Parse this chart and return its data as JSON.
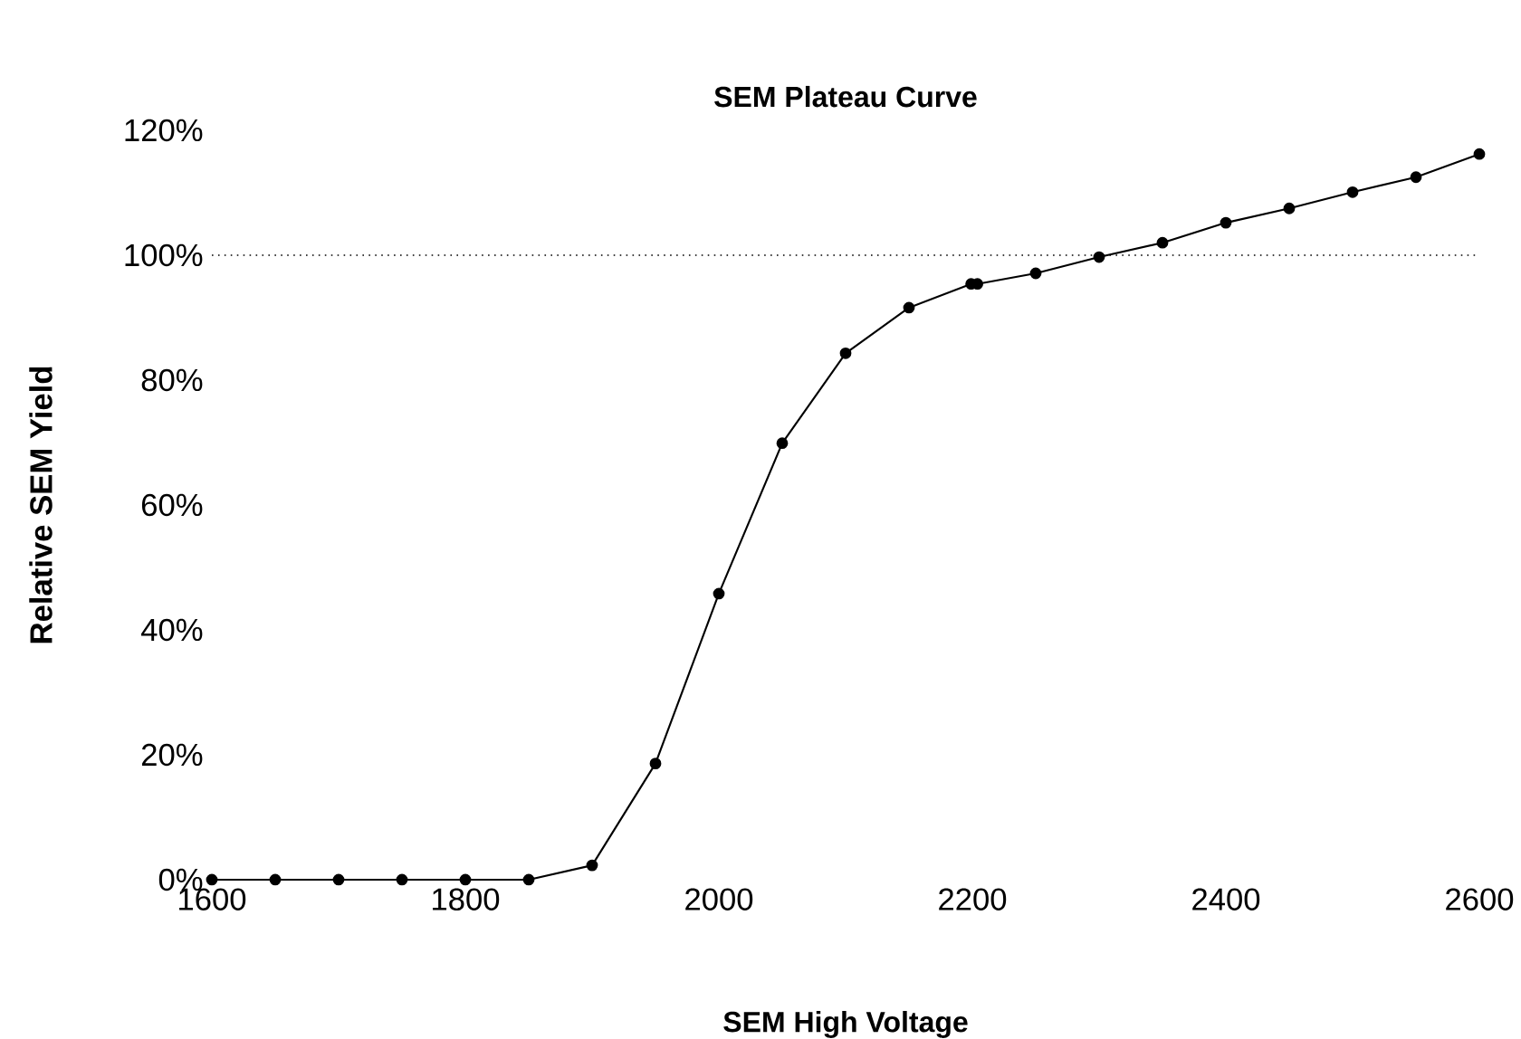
{
  "chart_data": {
    "type": "line",
    "title": "SEM Plateau Curve",
    "xlabel": "SEM High Voltage",
    "ylabel": "Relative SEM Yield",
    "x": [
      1600,
      1650,
      1700,
      1750,
      1800,
      1850,
      1900,
      1950,
      2000,
      2050,
      2100,
      2150,
      2199,
      2204,
      2250,
      2300,
      2350,
      2400,
      2450,
      2500,
      2550,
      2600
    ],
    "series": [
      {
        "color": "#000000",
        "values": [
          0,
          0,
          0,
          0,
          0,
          0,
          2.3,
          18.6,
          45.8,
          69.9,
          84.3,
          91.6,
          95.4,
          95.4,
          97.1,
          99.7,
          102,
          105.2,
          107.5,
          110.1,
          112.5,
          116.2
        ]
      }
    ],
    "xlim": [
      1600,
      2600
    ],
    "xticks": [
      1600,
      1800,
      2000,
      2200,
      2400,
      2600
    ],
    "ylim": [
      0,
      120
    ],
    "yticks": [
      {
        "value": 0,
        "label": "0%"
      },
      {
        "value": 20,
        "label": "20%"
      },
      {
        "value": 40,
        "label": "40%"
      },
      {
        "value": 60,
        "label": "60%"
      },
      {
        "value": 80,
        "label": "80%"
      },
      {
        "value": 100,
        "label": "100%"
      },
      {
        "value": 120,
        "label": "120%"
      }
    ],
    "ref_lines": [
      {
        "axis": "y",
        "value": 100,
        "color": "#000000",
        "line_style": "dotted"
      }
    ],
    "grid": false,
    "marker": "circle",
    "line_style": "solid"
  }
}
